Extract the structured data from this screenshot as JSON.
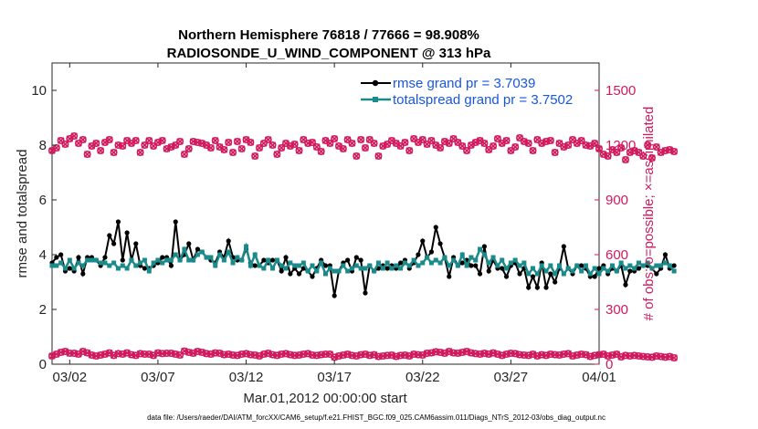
{
  "chart_data": {
    "type": "line",
    "title": "Northern Hemisphere 76818 / 77666 = 98.908%",
    "subtitle": "RADIOSONDE_U_WIND_COMPONENT @ 313 hPa",
    "xlabel": "Mar.01,2012 00:00:00 start",
    "ylabel": "rmse and totalspread",
    "ylabel_right": "# of obs: o=possible; ×=assimilated",
    "xlim": [
      0,
      31
    ],
    "ylim": [
      0,
      11
    ],
    "ylim_right": [
      0,
      1650
    ],
    "x_ticks": [
      1,
      6,
      11,
      16,
      21,
      26,
      31
    ],
    "x_tick_labels": [
      "03/02",
      "03/07",
      "03/12",
      "03/17",
      "03/22",
      "03/27",
      "04/01"
    ],
    "y_ticks": [
      0,
      2,
      4,
      6,
      8,
      10
    ],
    "y_tick_labels": [
      "0",
      "2",
      "4",
      "6",
      "8",
      "10"
    ],
    "y_ticks_right": [
      0,
      300,
      600,
      900,
      1200,
      1500
    ],
    "y_tick_labels_right": [
      "0",
      "300",
      "600",
      "900",
      "1200",
      "1500"
    ],
    "colors": {
      "rmse": "#000000",
      "spread": "#1b8a8a",
      "obs": "#d1195e",
      "legend_text": "#1a56db"
    },
    "legend": {
      "rmse_label": "rmse grand pr = 3.7039",
      "spread_label": "totalspread grand pr = 3.7502",
      "placement": "top-right"
    },
    "footnote": "data file: /Users/raeder/DAI/ATM_forcXX/CAM6_setup/f.e21.FHIST_BGC.f09_025.CAM6assim.011/Diags_NTrS_2012-03/obs_diag_output.nc",
    "series": [
      {
        "name": "rmse",
        "values": [
          3.7,
          3.9,
          4.0,
          3.4,
          3.5,
          3.4,
          3.9,
          3.3,
          3.9,
          3.9,
          3.8,
          3.6,
          3.9,
          4.7,
          4.4,
          5.2,
          3.8,
          4.8,
          3.8,
          4.4,
          3.6,
          3.5,
          3.5,
          3.6,
          3.7,
          3.9,
          3.9,
          3.6,
          5.2,
          3.8,
          4.0,
          4.4,
          3.8,
          4.2,
          4.1,
          3.9,
          3.8,
          3.7,
          4.1,
          3.9,
          4.5,
          3.9,
          3.8,
          3.8,
          4.2,
          3.7,
          3.6,
          3.6,
          3.8,
          3.7,
          3.8,
          3.8,
          3.4,
          3.9,
          3.3,
          3.5,
          3.3,
          3.5,
          3.4,
          3.2,
          3.5,
          3.8,
          3.6,
          3.6,
          2.5,
          3.4,
          3.7,
          3.8,
          3.4,
          3.9,
          3.8,
          2.6,
          3.6,
          3.4,
          3.5,
          3.6,
          3.5,
          3.6,
          3.5,
          3.7,
          3.8,
          3.5,
          3.7,
          4.0,
          4.5,
          3.9,
          4.1,
          5.0,
          4.4,
          3.9,
          3.2,
          3.9,
          3.6,
          3.7,
          3.8,
          3.6,
          3.6,
          3.3,
          4.3,
          3.4,
          3.8,
          3.5,
          3.5,
          3.2,
          3.6,
          3.7,
          3.3,
          3.5,
          2.8,
          3.2,
          2.8,
          3.7,
          2.8,
          3.3,
          3.0,
          3.5,
          4.3,
          3.5,
          3.3,
          3.6,
          3.6,
          3.5,
          3.2,
          3.2,
          3.5,
          3.6,
          3.3,
          3.5,
          3.4,
          3.6,
          2.9,
          3.4,
          3.4,
          3.5,
          3.6,
          3.6,
          3.5,
          3.3,
          3.5,
          4.0,
          3.5,
          3.6
        ]
      },
      {
        "name": "totalspread",
        "values": [
          3.6,
          3.6,
          3.7,
          3.5,
          3.8,
          3.5,
          3.7,
          3.6,
          3.8,
          3.8,
          3.8,
          3.7,
          3.7,
          3.6,
          3.7,
          3.5,
          3.6,
          3.5,
          3.8,
          3.6,
          3.7,
          3.8,
          3.4,
          3.7,
          3.8,
          3.7,
          3.8,
          3.8,
          4.0,
          3.8,
          4.2,
          3.8,
          3.8,
          4.0,
          4.1,
          3.9,
          3.9,
          3.6,
          4.0,
          3.8,
          4.1,
          3.7,
          3.9,
          3.8,
          4.3,
          3.6,
          4.0,
          3.6,
          3.5,
          3.8,
          3.5,
          3.8,
          3.6,
          3.5,
          3.7,
          3.6,
          3.6,
          3.7,
          3.4,
          3.6,
          3.4,
          3.7,
          3.3,
          3.5,
          3.4,
          3.4,
          3.6,
          3.4,
          3.5,
          3.6,
          3.5,
          3.5,
          3.6,
          3.4,
          3.7,
          3.5,
          3.7,
          3.5,
          3.6,
          3.5,
          3.7,
          3.6,
          3.8,
          3.6,
          3.7,
          3.9,
          3.7,
          3.8,
          3.7,
          3.9,
          3.6,
          3.8,
          3.6,
          4.0,
          3.6,
          3.9,
          3.8,
          4.2,
          4.0,
          3.7,
          3.9,
          3.6,
          3.8,
          3.5,
          3.7,
          3.8,
          3.6,
          3.7,
          3.3,
          3.5,
          3.3,
          3.6,
          3.4,
          3.6,
          3.3,
          3.6,
          3.3,
          3.5,
          3.4,
          3.6,
          3.4,
          3.6,
          3.3,
          3.5,
          3.3,
          3.5,
          3.4,
          3.6,
          3.4,
          3.7,
          3.5,
          3.6,
          3.5,
          3.7,
          3.6,
          3.7,
          3.5,
          3.6,
          3.6,
          3.7,
          3.6,
          3.4
        ]
      },
      {
        "name": "obs_possible",
        "values": [
          1170,
          1185,
          1225,
          1205,
          1235,
          1250,
          1210,
          1230,
          1150,
          1195,
          1210,
          1170,
          1215,
          1230,
          1160,
          1200,
          1195,
          1225,
          1210,
          1225,
          1160,
          1200,
          1225,
          1195,
          1215,
          1225,
          1180,
          1190,
          1200,
          1220,
          1150,
          1180,
          1220,
          1215,
          1210,
          1200,
          1185,
          1225,
          1190,
          1175,
          1215,
          1160,
          1220,
          1180,
          1230,
          1215,
          1140,
          1185,
          1210,
          1230,
          1200,
          1150,
          1185,
          1210,
          1195,
          1205,
          1170,
          1230,
          1210,
          1215,
          1190,
          1165,
          1225,
          1210,
          1235,
          1195,
          1180,
          1230,
          1210,
          1140,
          1230,
          1185,
          1230,
          1210,
          1140,
          1195,
          1205,
          1225,
          1210,
          1195,
          1215,
          1170,
          1235,
          1215,
          1230,
          1205,
          1225,
          1200,
          1185,
          1220,
          1210,
          1235,
          1215,
          1195,
          1170,
          1200,
          1215,
          1225,
          1210,
          1175,
          1195,
          1235,
          1210,
          1225,
          1170,
          1190,
          1240,
          1220,
          1210,
          1170,
          1230,
          1210,
          1220,
          1225,
          1160,
          1210,
          1190,
          1200,
          1230,
          1210,
          1225,
          1200,
          1195,
          1210,
          1180,
          1150,
          1140,
          1175,
          1160,
          1185,
          1120,
          1160,
          1170,
          1160,
          1140,
          1200,
          1130,
          1190,
          1160,
          1170,
          1175,
          1165
        ]
      },
      {
        "name": "obs_assimilated",
        "values": [
          45,
          55,
          65,
          70,
          60,
          60,
          55,
          70,
          62,
          50,
          45,
          50,
          55,
          62,
          48,
          58,
          55,
          62,
          52,
          48,
          58,
          55,
          55,
          48,
          62,
          58,
          60,
          60,
          55,
          50,
          72,
          65,
          60,
          70,
          65,
          58,
          55,
          62,
          60,
          52,
          55,
          50,
          48,
          55,
          58,
          52,
          50,
          45,
          55,
          60,
          52,
          48,
          55,
          58,
          52,
          48,
          50,
          55,
          58,
          50,
          48,
          52,
          55,
          55,
          38,
          45,
          50,
          55,
          48,
          45,
          52,
          55,
          48,
          52,
          42,
          45,
          48,
          50,
          42,
          48,
          50,
          45,
          55,
          52,
          50,
          60,
          62,
          68,
          65,
          60,
          70,
          62,
          60,
          65,
          70,
          62,
          58,
          55,
          60,
          55,
          62,
          55,
          48,
          55,
          60,
          58,
          52,
          50,
          48,
          55,
          45,
          52,
          48,
          55,
          52,
          50,
          55,
          58,
          45,
          50,
          55,
          52,
          42,
          48,
          52,
          55,
          45,
          50,
          55,
          40,
          48,
          45,
          48,
          45,
          42,
          40,
          38,
          45,
          42,
          38,
          42,
          35
        ]
      }
    ]
  }
}
